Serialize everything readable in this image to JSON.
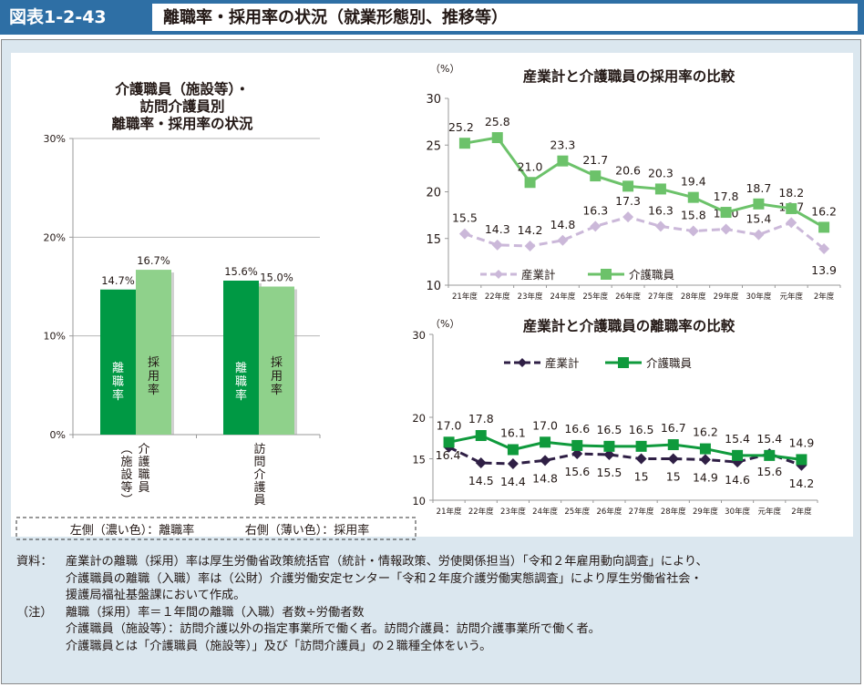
{
  "header": {
    "figure_number": "図表1-2-43",
    "title": "離職率・採用率の状況（就業形態別、推移等）"
  },
  "colors": {
    "header_blue": "#2e6fa5",
    "outer_bg": "#dbe7ef",
    "dark_green": "#009944",
    "light_green": "#8fd18b",
    "hire_green": "#6cc26a",
    "sep_green": "#0f9a3c",
    "industry_light_purple": "#cbb8d9",
    "industry_dark_purple": "#2f1f45"
  },
  "chart_data": [
    {
      "type": "bar",
      "title": "介護職員（施設等）・訪問介護員別 離職率・採用率の状況",
      "title_lines": [
        "介護職員（施設等）・",
        "訪問介護員別",
        "離職率・採用率の状況"
      ],
      "categories": [
        "介護職員（施設等）",
        "訪問介護員"
      ],
      "category_label_lines": [
        [
          "介護職員",
          "（施設等）"
        ],
        [
          "訪問介護員"
        ]
      ],
      "series": [
        {
          "name": "離職率",
          "values": [
            14.7,
            15.6
          ],
          "labels": [
            "14.7%",
            "15.6%"
          ],
          "in_bar_text": "離職率"
        },
        {
          "name": "採用率",
          "values": [
            16.7,
            15.0
          ],
          "labels": [
            "16.7%",
            "15.0%"
          ],
          "in_bar_text": "採用率"
        }
      ],
      "ylim": [
        0,
        30
      ],
      "yticks": [
        0,
        10,
        20,
        30
      ],
      "ytick_labels": [
        "0%",
        "10%",
        "20%",
        "30%"
      ],
      "grid": true,
      "legend_note": {
        "left": "左側（濃い色）：離職率",
        "right": "右側（薄い色）：採用率"
      }
    },
    {
      "type": "line",
      "title": "産業計と介護職員の採用率の比較",
      "unit_label": "（%）",
      "x": [
        "21年度",
        "22年度",
        "23年度",
        "24年度",
        "25年度",
        "26年度",
        "27年度",
        "28年度",
        "29年度",
        "30年度",
        "元年度",
        "2年度"
      ],
      "series": [
        {
          "name": "産業計",
          "values": [
            15.5,
            14.3,
            14.2,
            14.8,
            16.3,
            17.3,
            16.3,
            15.8,
            16.0,
            15.4,
            16.7,
            13.9
          ],
          "labels": [
            "15.5",
            "14.3",
            "14.2",
            "14.8",
            "16.3",
            "17.3",
            "16.3",
            "15.8",
            "16.0",
            "15.4",
            "16.7",
            "13.9"
          ],
          "style": "dashed",
          "marker": "diamond"
        },
        {
          "name": "介護職員",
          "values": [
            25.2,
            25.8,
            21.0,
            23.3,
            21.7,
            20.6,
            20.3,
            19.4,
            17.8,
            18.7,
            18.2,
            16.2
          ],
          "labels": [
            "25.2",
            "25.8",
            "21.0",
            "23.3",
            "21.7",
            "20.6",
            "20.3",
            "19.4",
            "17.8",
            "18.7",
            "18.2",
            "16.2"
          ],
          "style": "solid",
          "marker": "square"
        }
      ],
      "ylim": [
        10,
        30
      ],
      "yticks": [
        10,
        15,
        20,
        25,
        30
      ],
      "ytick_labels": [
        "10",
        "15",
        "20",
        "25",
        "30"
      ],
      "grid": false,
      "legend_placement": "bottom-left"
    },
    {
      "type": "line",
      "title": "産業計と介護職員の離職率の比較",
      "unit_label": "（%）",
      "x": [
        "21年度",
        "22年度",
        "23年度",
        "24年度",
        "25年度",
        "26年度",
        "27年度",
        "28年度",
        "29年度",
        "30年度",
        "元年度",
        "2年度"
      ],
      "series": [
        {
          "name": "産業計",
          "values": [
            16.4,
            14.5,
            14.4,
            14.8,
            15.6,
            15.5,
            15.0,
            15.0,
            14.9,
            14.6,
            15.6,
            14.2
          ],
          "labels": [
            "16.4",
            "14.5",
            "14.4",
            "14.8",
            "15.6",
            "15.5",
            "15",
            "15",
            "14.9",
            "14.6",
            "15.6",
            "14.2"
          ],
          "style": "dashed",
          "marker": "diamond"
        },
        {
          "name": "介護職員",
          "values": [
            17.0,
            17.8,
            16.1,
            17.0,
            16.6,
            16.5,
            16.5,
            16.7,
            16.2,
            15.4,
            15.4,
            14.9
          ],
          "labels": [
            "17.0",
            "17.8",
            "16.1",
            "17.0",
            "16.6",
            "16.5",
            "16.5",
            "16.7",
            "16.2",
            "15.4",
            "15.4",
            "14.9"
          ],
          "style": "solid",
          "marker": "square"
        }
      ],
      "ylim": [
        10,
        30
      ],
      "yticks": [
        10,
        15,
        20,
        30
      ],
      "ytick_labels": [
        "10",
        "15",
        "20",
        "30"
      ],
      "grid": false,
      "legend_placement": "top"
    }
  ],
  "notes": {
    "source_label": "資料：",
    "source_lines": [
      "産業計の離職（採用）率は厚生労働省政策統括官（統計・情報政策、労使関係担当）「令和２年雇用動向調査」により、",
      "介護職員の離職（入職）率は（公財）介護労働安定センター「令和２年度介護労働実態調査」により厚生労働省社会・",
      "援護局福祉基盤課において作成。"
    ],
    "note_label": "（注）",
    "note_lines": [
      "離職（採用）率＝１年間の離職（入職）者数÷労働者数",
      "介護職員（施設等）：訪問介護以外の指定事業所で働く者。訪問介護員：訪問介護事業所で働く者。",
      "介護職員とは「介護職員（施設等）」及び「訪問介護員」の２職種全体をいう。"
    ]
  }
}
